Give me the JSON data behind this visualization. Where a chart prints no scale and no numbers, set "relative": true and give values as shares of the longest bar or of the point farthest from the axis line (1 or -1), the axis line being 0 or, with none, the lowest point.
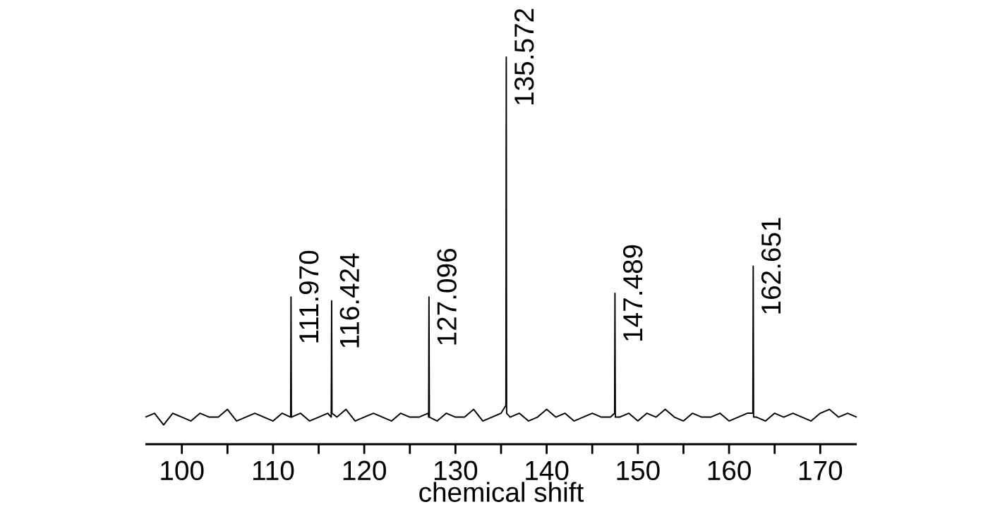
{
  "chart_data": {
    "type": "line",
    "relative": true,
    "xlabel": "chemical shift",
    "xlim": [
      96,
      174
    ],
    "xticks": [
      100,
      {
        "value": 105,
        "label": null
      },
      110,
      {
        "value": 115,
        "label": null
      },
      120,
      {
        "value": 125,
        "label": null
      },
      130,
      {
        "value": 135,
        "label": null
      },
      140,
      {
        "value": 145,
        "label": null
      },
      150,
      {
        "value": 155,
        "label": null
      },
      160,
      {
        "value": 165,
        "label": null
      },
      170
    ],
    "series": [
      {
        "color": "#000000",
        "x": [
          96,
          97,
          98,
          99,
          100,
          101,
          102,
          103,
          104,
          105,
          106,
          107,
          108,
          109,
          110,
          111,
          111.93,
          111.97,
          112.01,
          113,
          114,
          115,
          116,
          116.38,
          116.424,
          116.46,
          117,
          118,
          119,
          120,
          121,
          122,
          123,
          124,
          125,
          126,
          127,
          127.06,
          127.096,
          127.14,
          128,
          129,
          130,
          131,
          132,
          133,
          134,
          135,
          135.53,
          135.572,
          135.61,
          136,
          137,
          138,
          139,
          140,
          141,
          142,
          143,
          144,
          145,
          146,
          147,
          147.45,
          147.489,
          147.53,
          148,
          149,
          150,
          151,
          152,
          153,
          154,
          155,
          156,
          157,
          158,
          159,
          160,
          161,
          162,
          162.61,
          162.651,
          162.69,
          163,
          164,
          165,
          166,
          167,
          168,
          169,
          170,
          171,
          172,
          173,
          174
        ],
        "values": [
          0.07,
          0.08,
          0.05,
          0.08,
          0.07,
          0.06,
          0.08,
          0.07,
          0.07,
          0.09,
          0.06,
          0.07,
          0.08,
          0.07,
          0.06,
          0.08,
          0.07,
          0.38,
          0.07,
          0.08,
          0.06,
          0.07,
          0.08,
          0.07,
          0.37,
          0.08,
          0.07,
          0.09,
          0.06,
          0.07,
          0.08,
          0.07,
          0.06,
          0.08,
          0.07,
          0.07,
          0.08,
          0.07,
          0.38,
          0.07,
          0.06,
          0.08,
          0.07,
          0.07,
          0.09,
          0.06,
          0.07,
          0.08,
          0.1,
          1,
          0.08,
          0.07,
          0.08,
          0.06,
          0.07,
          0.09,
          0.07,
          0.08,
          0.06,
          0.07,
          0.08,
          0.07,
          0.07,
          0.08,
          0.39,
          0.07,
          0.07,
          0.08,
          0.06,
          0.08,
          0.07,
          0.09,
          0.07,
          0.06,
          0.08,
          0.07,
          0.07,
          0.08,
          0.06,
          0.07,
          0.08,
          0.08,
          0.46,
          0.07,
          0.07,
          0.06,
          0.08,
          0.07,
          0.08,
          0.07,
          0.06,
          0.08,
          0.09,
          0.07,
          0.08,
          0.07
        ]
      }
    ],
    "annotations": [
      {
        "text": "111.970",
        "x": 111.97,
        "y": 0.38
      },
      {
        "text": "116.424",
        "x": 116.424,
        "y": 0.37
      },
      {
        "text": "127.096",
        "x": 127.096,
        "y": 0.38
      },
      {
        "text": "135.572",
        "x": 135.572,
        "y": 1
      },
      {
        "text": "147.489",
        "x": 147.489,
        "y": 0.39
      },
      {
        "text": "162.651",
        "x": 162.651,
        "y": 0.46
      }
    ]
  }
}
